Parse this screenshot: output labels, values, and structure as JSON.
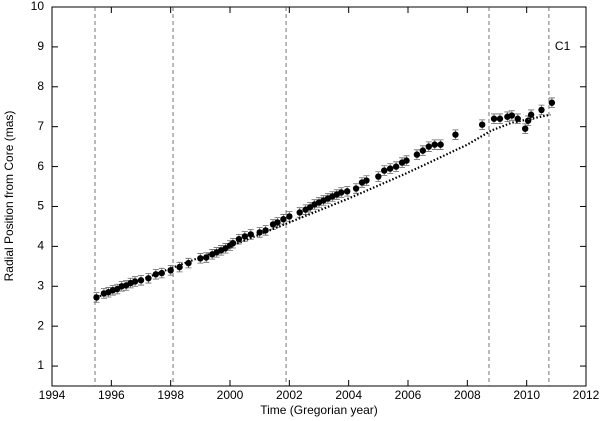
{
  "chart_data": {
    "type": "scatter",
    "xlabel": "Time (Gregorian year)",
    "ylabel": "Radial Position from Core (mas)",
    "annotation": "C1",
    "xlim": [
      1994,
      2012
    ],
    "xticks": [
      1994,
      1996,
      1998,
      2000,
      2002,
      2004,
      2006,
      2008,
      2010,
      2012
    ],
    "ylim": [
      0.5,
      10
    ],
    "yticks": [
      1,
      2,
      3,
      4,
      5,
      6,
      7,
      8,
      9,
      10
    ],
    "vlines": [
      1995.45,
      1998.08,
      2001.89,
      2008.73,
      2010.75
    ],
    "series": [
      {
        "color": "#000000",
        "error": 0.12,
        "x": [
          1995.5,
          1995.75,
          1995.9,
          1996.05,
          1996.2,
          1996.35,
          1996.5,
          1996.65,
          1996.8,
          1997.0,
          1997.25,
          1997.5,
          1997.7,
          1998.0,
          1998.3,
          1998.6,
          1999.0,
          1999.2,
          1999.4,
          1999.55,
          1999.7,
          1999.85,
          2000.0,
          2000.1,
          2000.3,
          2000.5,
          2000.7,
          2001.0,
          2001.2,
          2001.45,
          2001.6,
          2001.8,
          2002.0,
          2002.35,
          2002.55,
          2002.7,
          2002.85,
          2003.0,
          2003.15,
          2003.3,
          2003.45,
          2003.6,
          2003.75,
          2003.95,
          2004.25,
          2004.45,
          2004.6,
          2005.0,
          2005.2,
          2005.4,
          2005.6,
          2005.8,
          2005.95,
          2006.3,
          2006.5,
          2006.7,
          2006.9,
          2007.1,
          2007.6,
          2008.5,
          2008.9,
          2009.1,
          2009.35,
          2009.5,
          2009.7,
          2009.95,
          2010.05,
          2010.15,
          2010.5,
          2010.85
        ],
        "values": [
          2.72,
          2.82,
          2.85,
          2.9,
          2.93,
          3.0,
          3.02,
          3.08,
          3.12,
          3.15,
          3.2,
          3.3,
          3.33,
          3.4,
          3.48,
          3.58,
          3.7,
          3.72,
          3.8,
          3.85,
          3.9,
          3.95,
          4.02,
          4.08,
          4.18,
          4.25,
          4.3,
          4.35,
          4.4,
          4.55,
          4.6,
          4.68,
          4.75,
          4.85,
          4.92,
          4.98,
          5.05,
          5.1,
          5.15,
          5.2,
          5.25,
          5.3,
          5.35,
          5.38,
          5.45,
          5.6,
          5.65,
          5.75,
          5.9,
          5.95,
          6.0,
          6.1,
          6.15,
          6.3,
          6.4,
          6.5,
          6.55,
          6.55,
          6.8,
          7.05,
          7.2,
          7.2,
          7.25,
          7.28,
          7.2,
          6.95,
          7.15,
          7.3,
          7.42,
          7.6
        ]
      },
      {
        "color": "#000000",
        "style": "dotted",
        "x": [
          1995.5,
          1998.0,
          2000.0,
          2002.0,
          2004.0,
          2006.0,
          2008.0,
          2008.8,
          2009.5,
          2010.8
        ],
        "values": [
          2.72,
          3.45,
          4.0,
          4.6,
          5.2,
          5.85,
          6.55,
          6.9,
          7.1,
          7.3
        ]
      }
    ]
  }
}
